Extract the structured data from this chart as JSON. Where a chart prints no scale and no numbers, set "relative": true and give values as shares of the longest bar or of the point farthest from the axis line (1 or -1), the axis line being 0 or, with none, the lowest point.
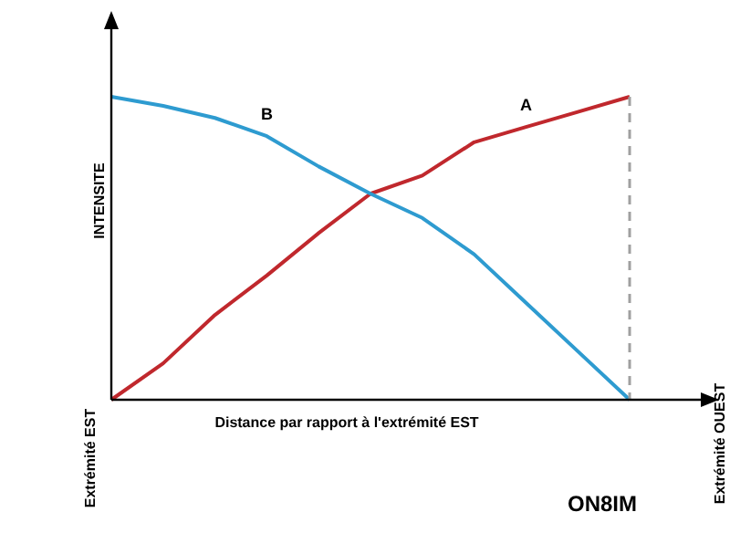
{
  "chart_data": {
    "type": "line",
    "relative": true,
    "xlabel": "Distance par rapport à l'extrémité EST",
    "ylabel": "INTENSITE",
    "categories": [
      null,
      null,
      null,
      null,
      null,
      null,
      null,
      null,
      null,
      null,
      null
    ],
    "series": [
      {
        "name": "A",
        "color": "#c0282d",
        "values": [
          0,
          0.12,
          0.28,
          0.41,
          0.55,
          0.68,
          0.74,
          0.85,
          0.9,
          0.95,
          1
        ]
      },
      {
        "name": "B",
        "color": "#2e9bd0",
        "values": [
          1,
          0.97,
          0.93,
          0.87,
          0.77,
          0.68,
          0.6,
          0.48,
          0.32,
          0.16,
          0
        ]
      }
    ],
    "annotations": [
      "Extrémité EST",
      "Extrémité OUEST",
      "ON8IM"
    ],
    "marker": "none",
    "line_style": "solid"
  }
}
